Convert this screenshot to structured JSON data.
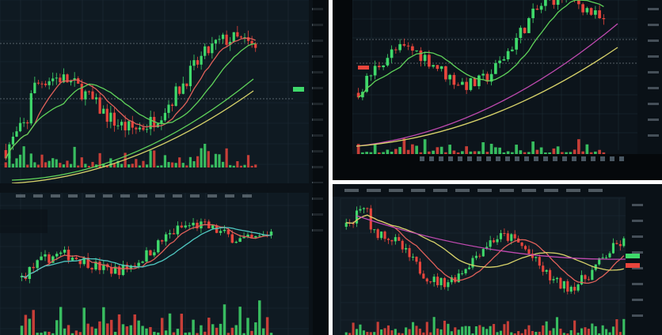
{
  "colors": {
    "background": "#101820",
    "grid": "#1e2c36",
    "bullish": "#3fd96b",
    "bearish": "#e8453c",
    "ma_green": "#5fd35a",
    "ma_yellow": "#d8d36a",
    "ma_magenta": "#c04ab0",
    "ma_red": "#e0605a",
    "ma_cyan": "#4fc7c0",
    "bezel": "#05080b"
  },
  "panels": [
    {
      "name": "left-monitor-photo",
      "chart_count": 2
    },
    {
      "name": "top-right-monitor-photo",
      "chart_count": 1
    },
    {
      "name": "bottom-right-monitor-photo",
      "chart_count": 1
    }
  ]
}
